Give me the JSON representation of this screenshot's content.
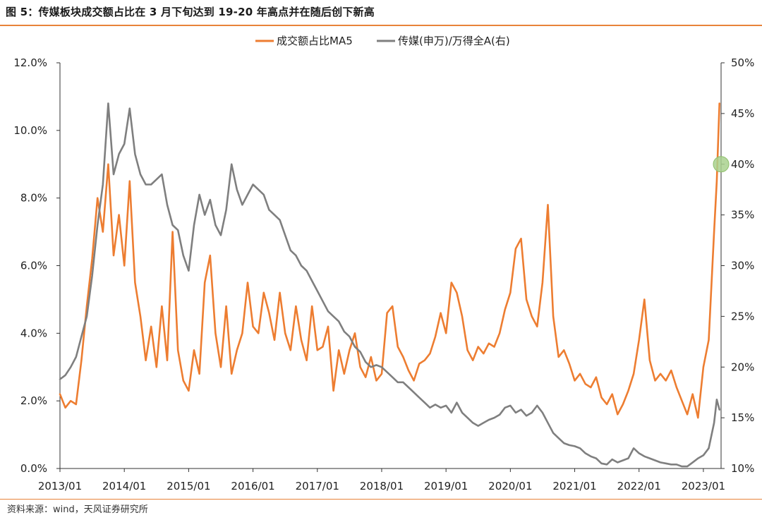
{
  "header": {
    "title": "图 5：传媒板块成交额占比在 3 月下旬达到 19-20 年高点并在随后创下新高"
  },
  "footer": {
    "source": "资料来源：wind，天风证券研究所"
  },
  "colors": {
    "orange": "#ED7D31",
    "gray": "#7F7F7F",
    "accent_rule": "#E8833A",
    "marker": "#A9D18E"
  },
  "chart_data": {
    "type": "line",
    "x_ticks": [
      "2013/01",
      "2014/01",
      "2015/01",
      "2016/01",
      "2017/01",
      "2018/01",
      "2019/01",
      "2020/01",
      "2021/01",
      "2022/01",
      "2023/01"
    ],
    "x_range": [
      "2013/01",
      "2023/04"
    ],
    "y_left": {
      "ticks": [
        "0.0%",
        "2.0%",
        "4.0%",
        "6.0%",
        "8.0%",
        "10.0%",
        "12.0%"
      ],
      "range": [
        0,
        12
      ]
    },
    "y_right": {
      "ticks": [
        "10%",
        "15%",
        "20%",
        "25%",
        "30%",
        "35%",
        "40%",
        "45%",
        "50%"
      ],
      "range": [
        10,
        50
      ]
    },
    "legend_position": "top-center",
    "series": [
      {
        "name": "成交额占比MA5",
        "axis": "left",
        "color": "#ED7D31",
        "points": [
          [
            "2013/01",
            2.2
          ],
          [
            "2013/02",
            1.8
          ],
          [
            "2013/03",
            2.0
          ],
          [
            "2013/04",
            1.9
          ],
          [
            "2013/05",
            3.2
          ],
          [
            "2013/06",
            4.8
          ],
          [
            "2013/07",
            6.2
          ],
          [
            "2013/08",
            8.0
          ],
          [
            "2013/09",
            7.0
          ],
          [
            "2013/10",
            9.0
          ],
          [
            "2013/11",
            6.3
          ],
          [
            "2013/12",
            7.5
          ],
          [
            "2014/01",
            6.0
          ],
          [
            "2014/02",
            8.5
          ],
          [
            "2014/03",
            5.5
          ],
          [
            "2014/04",
            4.5
          ],
          [
            "2014/05",
            3.2
          ],
          [
            "2014/06",
            4.2
          ],
          [
            "2014/07",
            3.0
          ],
          [
            "2014/08",
            4.8
          ],
          [
            "2014/09",
            3.2
          ],
          [
            "2014/10",
            7.0
          ],
          [
            "2014/11",
            3.5
          ],
          [
            "2014/12",
            2.6
          ],
          [
            "2015/01",
            2.3
          ],
          [
            "2015/02",
            3.5
          ],
          [
            "2015/03",
            2.8
          ],
          [
            "2015/04",
            5.5
          ],
          [
            "2015/05",
            6.3
          ],
          [
            "2015/06",
            4.0
          ],
          [
            "2015/07",
            3.0
          ],
          [
            "2015/08",
            4.8
          ],
          [
            "2015/09",
            2.8
          ],
          [
            "2015/10",
            3.5
          ],
          [
            "2015/11",
            4.0
          ],
          [
            "2015/12",
            5.5
          ],
          [
            "2016/01",
            4.2
          ],
          [
            "2016/02",
            4.0
          ],
          [
            "2016/03",
            5.2
          ],
          [
            "2016/04",
            4.6
          ],
          [
            "2016/05",
            3.8
          ],
          [
            "2016/06",
            5.2
          ],
          [
            "2016/07",
            4.0
          ],
          [
            "2016/08",
            3.5
          ],
          [
            "2016/09",
            4.8
          ],
          [
            "2016/10",
            3.8
          ],
          [
            "2016/11",
            3.2
          ],
          [
            "2016/12",
            4.8
          ],
          [
            "2017/01",
            3.5
          ],
          [
            "2017/02",
            3.6
          ],
          [
            "2017/03",
            4.2
          ],
          [
            "2017/04",
            2.3
          ],
          [
            "2017/05",
            3.5
          ],
          [
            "2017/06",
            2.8
          ],
          [
            "2017/07",
            3.5
          ],
          [
            "2017/08",
            4.0
          ],
          [
            "2017/09",
            3.0
          ],
          [
            "2017/10",
            2.7
          ],
          [
            "2017/11",
            3.3
          ],
          [
            "2017/12",
            2.6
          ],
          [
            "2018/01",
            2.8
          ],
          [
            "2018/02",
            4.6
          ],
          [
            "2018/03",
            4.8
          ],
          [
            "2018/04",
            3.6
          ],
          [
            "2018/05",
            3.3
          ],
          [
            "2018/06",
            2.9
          ],
          [
            "2018/07",
            2.6
          ],
          [
            "2018/08",
            3.1
          ],
          [
            "2018/09",
            3.2
          ],
          [
            "2018/10",
            3.4
          ],
          [
            "2018/11",
            3.9
          ],
          [
            "2018/12",
            4.6
          ],
          [
            "2019/01",
            4.0
          ],
          [
            "2019/02",
            5.5
          ],
          [
            "2019/03",
            5.2
          ],
          [
            "2019/04",
            4.5
          ],
          [
            "2019/05",
            3.5
          ],
          [
            "2019/06",
            3.2
          ],
          [
            "2019/07",
            3.6
          ],
          [
            "2019/08",
            3.4
          ],
          [
            "2019/09",
            3.7
          ],
          [
            "2019/10",
            3.6
          ],
          [
            "2019/11",
            4.0
          ],
          [
            "2019/12",
            4.7
          ],
          [
            "2020/01",
            5.2
          ],
          [
            "2020/02",
            6.5
          ],
          [
            "2020/03",
            6.8
          ],
          [
            "2020/04",
            5.0
          ],
          [
            "2020/05",
            4.5
          ],
          [
            "2020/06",
            4.2
          ],
          [
            "2020/07",
            5.5
          ],
          [
            "2020/08",
            7.8
          ],
          [
            "2020/09",
            4.5
          ],
          [
            "2020/10",
            3.3
          ],
          [
            "2020/11",
            3.5
          ],
          [
            "2020/12",
            3.1
          ],
          [
            "2021/01",
            2.6
          ],
          [
            "2021/02",
            2.8
          ],
          [
            "2021/03",
            2.5
          ],
          [
            "2021/04",
            2.4
          ],
          [
            "2021/05",
            2.7
          ],
          [
            "2021/06",
            2.1
          ],
          [
            "2021/07",
            1.9
          ],
          [
            "2021/08",
            2.2
          ],
          [
            "2021/09",
            1.6
          ],
          [
            "2021/10",
            1.9
          ],
          [
            "2021/11",
            2.3
          ],
          [
            "2021/12",
            2.8
          ],
          [
            "2022/01",
            3.8
          ],
          [
            "2022/02",
            5.0
          ],
          [
            "2022/03",
            3.2
          ],
          [
            "2022/04",
            2.6
          ],
          [
            "2022/05",
            2.8
          ],
          [
            "2022/06",
            2.6
          ],
          [
            "2022/07",
            2.9
          ],
          [
            "2022/08",
            2.4
          ],
          [
            "2022/09",
            2.0
          ],
          [
            "2022/10",
            1.6
          ],
          [
            "2022/11",
            2.2
          ],
          [
            "2022/12",
            1.5
          ],
          [
            "2023/01",
            3.0
          ],
          [
            "2023/02",
            3.8
          ],
          [
            "2023/03",
            7.0
          ],
          [
            "2023/03",
            8.5
          ],
          [
            "2023/04",
            10.8
          ]
        ]
      },
      {
        "name": "传媒(申万)/万得全A(右)",
        "axis": "right",
        "color": "#7F7F7F",
        "points": [
          [
            "2013/01",
            18.8
          ],
          [
            "2013/02",
            19.2
          ],
          [
            "2013/03",
            20.0
          ],
          [
            "2013/04",
            21.0
          ],
          [
            "2013/05",
            23.0
          ],
          [
            "2013/06",
            25.0
          ],
          [
            "2013/07",
            29.0
          ],
          [
            "2013/08",
            34.0
          ],
          [
            "2013/09",
            38.0
          ],
          [
            "2013/10",
            46.0
          ],
          [
            "2013/11",
            39.0
          ],
          [
            "2013/12",
            41.0
          ],
          [
            "2014/01",
            42.0
          ],
          [
            "2014/02",
            45.5
          ],
          [
            "2014/03",
            41.0
          ],
          [
            "2014/04",
            39.0
          ],
          [
            "2014/05",
            38.0
          ],
          [
            "2014/06",
            38.0
          ],
          [
            "2014/07",
            38.5
          ],
          [
            "2014/08",
            39.0
          ],
          [
            "2014/09",
            36.0
          ],
          [
            "2014/10",
            34.0
          ],
          [
            "2014/11",
            33.5
          ],
          [
            "2014/12",
            31.0
          ],
          [
            "2015/01",
            29.5
          ],
          [
            "2015/02",
            34.0
          ],
          [
            "2015/03",
            37.0
          ],
          [
            "2015/04",
            35.0
          ],
          [
            "2015/05",
            36.5
          ],
          [
            "2015/06",
            34.0
          ],
          [
            "2015/07",
            33.0
          ],
          [
            "2015/08",
            35.5
          ],
          [
            "2015/09",
            40.0
          ],
          [
            "2015/10",
            37.5
          ],
          [
            "2015/11",
            36.0
          ],
          [
            "2015/12",
            37.0
          ],
          [
            "2016/01",
            38.0
          ],
          [
            "2016/02",
            37.5
          ],
          [
            "2016/03",
            37.0
          ],
          [
            "2016/04",
            35.5
          ],
          [
            "2016/05",
            35.0
          ],
          [
            "2016/06",
            34.5
          ],
          [
            "2016/07",
            33.0
          ],
          [
            "2016/08",
            31.5
          ],
          [
            "2016/09",
            31.0
          ],
          [
            "2016/10",
            30.0
          ],
          [
            "2016/11",
            29.5
          ],
          [
            "2016/12",
            28.5
          ],
          [
            "2017/01",
            27.5
          ],
          [
            "2017/02",
            26.5
          ],
          [
            "2017/03",
            25.5
          ],
          [
            "2017/04",
            25.0
          ],
          [
            "2017/05",
            24.5
          ],
          [
            "2017/06",
            23.5
          ],
          [
            "2017/07",
            23.0
          ],
          [
            "2017/08",
            22.0
          ],
          [
            "2017/09",
            21.5
          ],
          [
            "2017/10",
            20.5
          ],
          [
            "2017/11",
            20.0
          ],
          [
            "2017/12",
            20.2
          ],
          [
            "2018/01",
            20.0
          ],
          [
            "2018/02",
            19.5
          ],
          [
            "2018/03",
            19.0
          ],
          [
            "2018/04",
            18.5
          ],
          [
            "2018/05",
            18.5
          ],
          [
            "2018/06",
            18.0
          ],
          [
            "2018/07",
            17.5
          ],
          [
            "2018/08",
            17.0
          ],
          [
            "2018/09",
            16.5
          ],
          [
            "2018/10",
            16.0
          ],
          [
            "2018/11",
            16.3
          ],
          [
            "2018/12",
            16.0
          ],
          [
            "2019/01",
            16.2
          ],
          [
            "2019/02",
            15.5
          ],
          [
            "2019/03",
            16.5
          ],
          [
            "2019/04",
            15.5
          ],
          [
            "2019/05",
            15.0
          ],
          [
            "2019/06",
            14.5
          ],
          [
            "2019/07",
            14.2
          ],
          [
            "2019/08",
            14.5
          ],
          [
            "2019/09",
            14.8
          ],
          [
            "2019/10",
            15.0
          ],
          [
            "2019/11",
            15.3
          ],
          [
            "2019/12",
            16.0
          ],
          [
            "2020/01",
            16.2
          ],
          [
            "2020/02",
            15.5
          ],
          [
            "2020/03",
            15.8
          ],
          [
            "2020/04",
            15.2
          ],
          [
            "2020/05",
            15.5
          ],
          [
            "2020/06",
            16.2
          ],
          [
            "2020/07",
            15.5
          ],
          [
            "2020/08",
            14.5
          ],
          [
            "2020/09",
            13.5
          ],
          [
            "2020/10",
            13.0
          ],
          [
            "2020/11",
            12.5
          ],
          [
            "2020/12",
            12.3
          ],
          [
            "2021/01",
            12.2
          ],
          [
            "2021/02",
            12.0
          ],
          [
            "2021/03",
            11.5
          ],
          [
            "2021/04",
            11.2
          ],
          [
            "2021/05",
            11.0
          ],
          [
            "2021/06",
            10.5
          ],
          [
            "2021/07",
            10.4
          ],
          [
            "2021/08",
            10.9
          ],
          [
            "2021/09",
            10.6
          ],
          [
            "2021/10",
            10.8
          ],
          [
            "2021/11",
            11.0
          ],
          [
            "2021/12",
            12.0
          ],
          [
            "2022/01",
            11.5
          ],
          [
            "2022/02",
            11.2
          ],
          [
            "2022/03",
            11.0
          ],
          [
            "2022/04",
            10.8
          ],
          [
            "2022/05",
            10.6
          ],
          [
            "2022/06",
            10.5
          ],
          [
            "2022/07",
            10.4
          ],
          [
            "2022/08",
            10.4
          ],
          [
            "2022/09",
            10.2
          ],
          [
            "2022/10",
            10.2
          ],
          [
            "2022/11",
            10.6
          ],
          [
            "2022/12",
            11.0
          ],
          [
            "2023/01",
            11.3
          ],
          [
            "2023/02",
            12.0
          ],
          [
            "2023/03",
            14.5
          ],
          [
            "2023/03",
            16.8
          ],
          [
            "2023/04",
            15.8
          ]
        ]
      }
    ]
  }
}
